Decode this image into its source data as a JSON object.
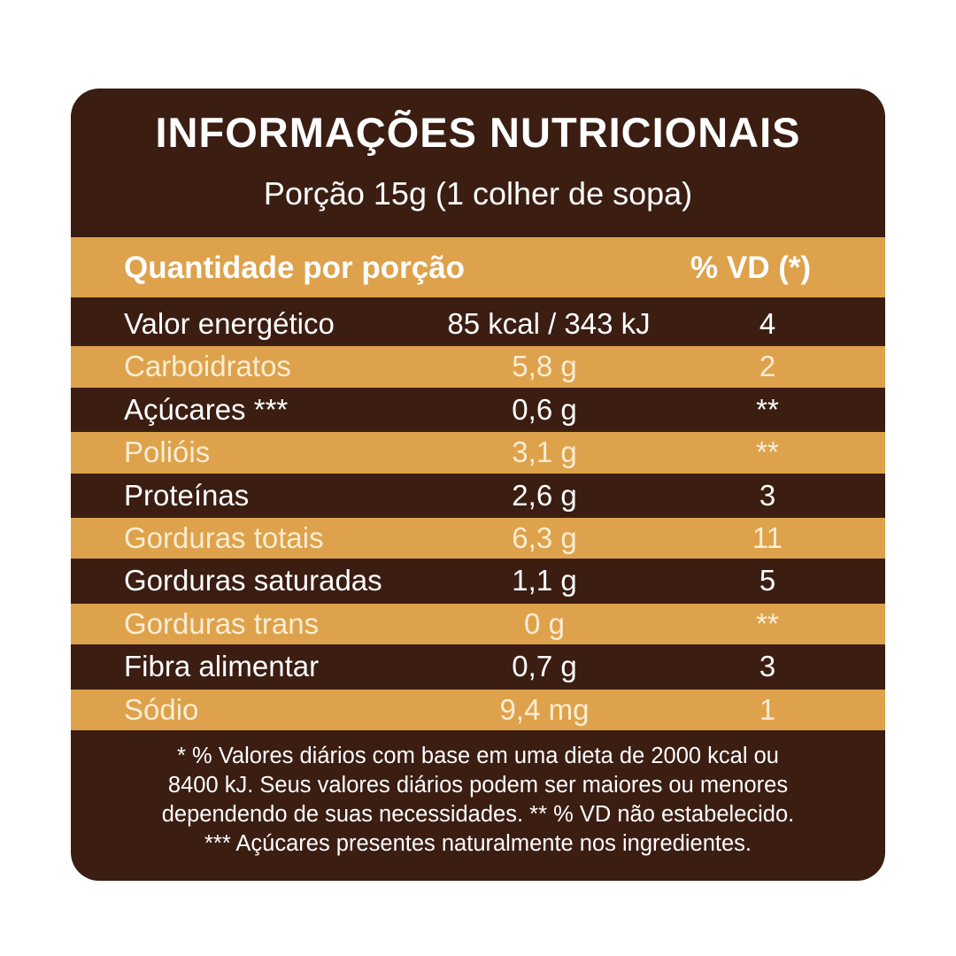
{
  "header": {
    "title": "INFORMAÇÕES NUTRICIONAIS",
    "subtitle": "Porção 15g (1 colher de sopa)"
  },
  "table": {
    "header": [
      "Quantidade por porção",
      "% VD (*)"
    ],
    "rows": [
      [
        "Valor energético",
        "85 kcal / 343 kJ",
        "4"
      ],
      [
        "Carboidratos",
        "5,8 g",
        "2"
      ],
      [
        "Açúcares ***",
        "0,6 g",
        "**"
      ],
      [
        "Polióis",
        "3,1 g",
        "**"
      ],
      [
        "Proteínas",
        "2,6 g",
        "3"
      ],
      [
        "Gorduras totais",
        "6,3 g",
        "11"
      ],
      [
        "Gorduras saturadas",
        "1,1 g",
        "5"
      ],
      [
        "Gorduras trans",
        "0 g",
        "**"
      ],
      [
        "Fibra alimentar",
        "0,7 g",
        "3"
      ],
      [
        "Sódio",
        "9,4 mg",
        "1"
      ]
    ]
  },
  "footnote": {
    "lines": [
      "* % Valores diários com base em uma dieta de 2000 kcal ou",
      "8400 kJ. Seus valores diários podem ser maiores ou menores",
      "dependendo de suas necessidades. ** % VD não estabelecido.",
      "*** Açúcares presentes naturalmente nos ingredientes."
    ]
  }
}
